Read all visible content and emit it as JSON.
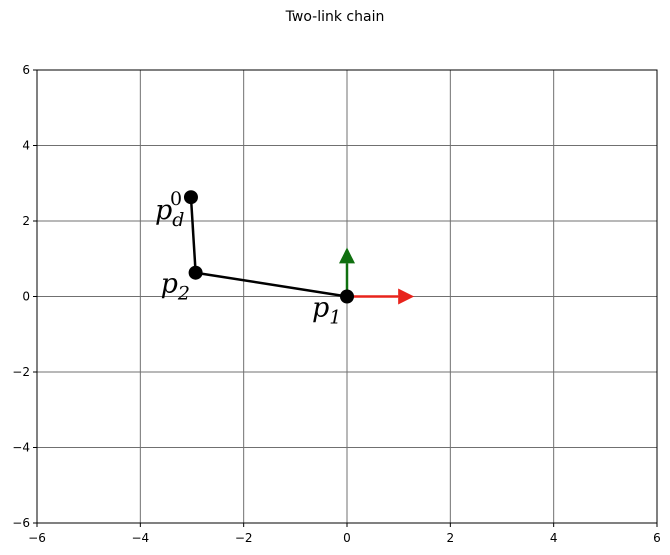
{
  "chart_data": {
    "type": "scatter",
    "title": "Two-link chain",
    "xlabel": "",
    "ylabel": "",
    "xlim": [
      -6,
      6
    ],
    "ylim": [
      -6,
      6
    ],
    "x_ticks": [
      -6,
      -4,
      -2,
      0,
      2,
      4,
      6
    ],
    "y_ticks": [
      -6,
      -4,
      -2,
      0,
      2,
      4,
      6
    ],
    "x_tick_labels": [
      "−6",
      "−4",
      "−2",
      "0",
      "2",
      "4",
      "6"
    ],
    "y_tick_labels": [
      "−6",
      "−4",
      "−2",
      "0",
      "2",
      "4",
      "6"
    ],
    "grid": true,
    "points": [
      {
        "id": "p1",
        "label": "p",
        "sub": "1",
        "sup": "",
        "x": 0.0,
        "y": 0.0
      },
      {
        "id": "p2",
        "label": "p",
        "sub": "2",
        "sup": "",
        "x": -2.93,
        "y": 0.63
      },
      {
        "id": "pd0",
        "label": "p",
        "sub": "d",
        "sup": "0",
        "x": -3.02,
        "y": 2.63
      }
    ],
    "links": [
      {
        "from": "p1",
        "to": "p2"
      },
      {
        "from": "p2",
        "to": "pd0"
      }
    ],
    "frame_axes": [
      {
        "name": "x-axis-arrow",
        "dx": 1.3,
        "dy": 0.0,
        "color": "#e8231c"
      },
      {
        "name": "y-axis-arrow",
        "dx": 0.0,
        "dy": 1.3,
        "color": "#107010"
      }
    ],
    "colors": {
      "link": "#000000",
      "point": "#000000",
      "grid": "#707070",
      "frame": "#000000"
    }
  }
}
